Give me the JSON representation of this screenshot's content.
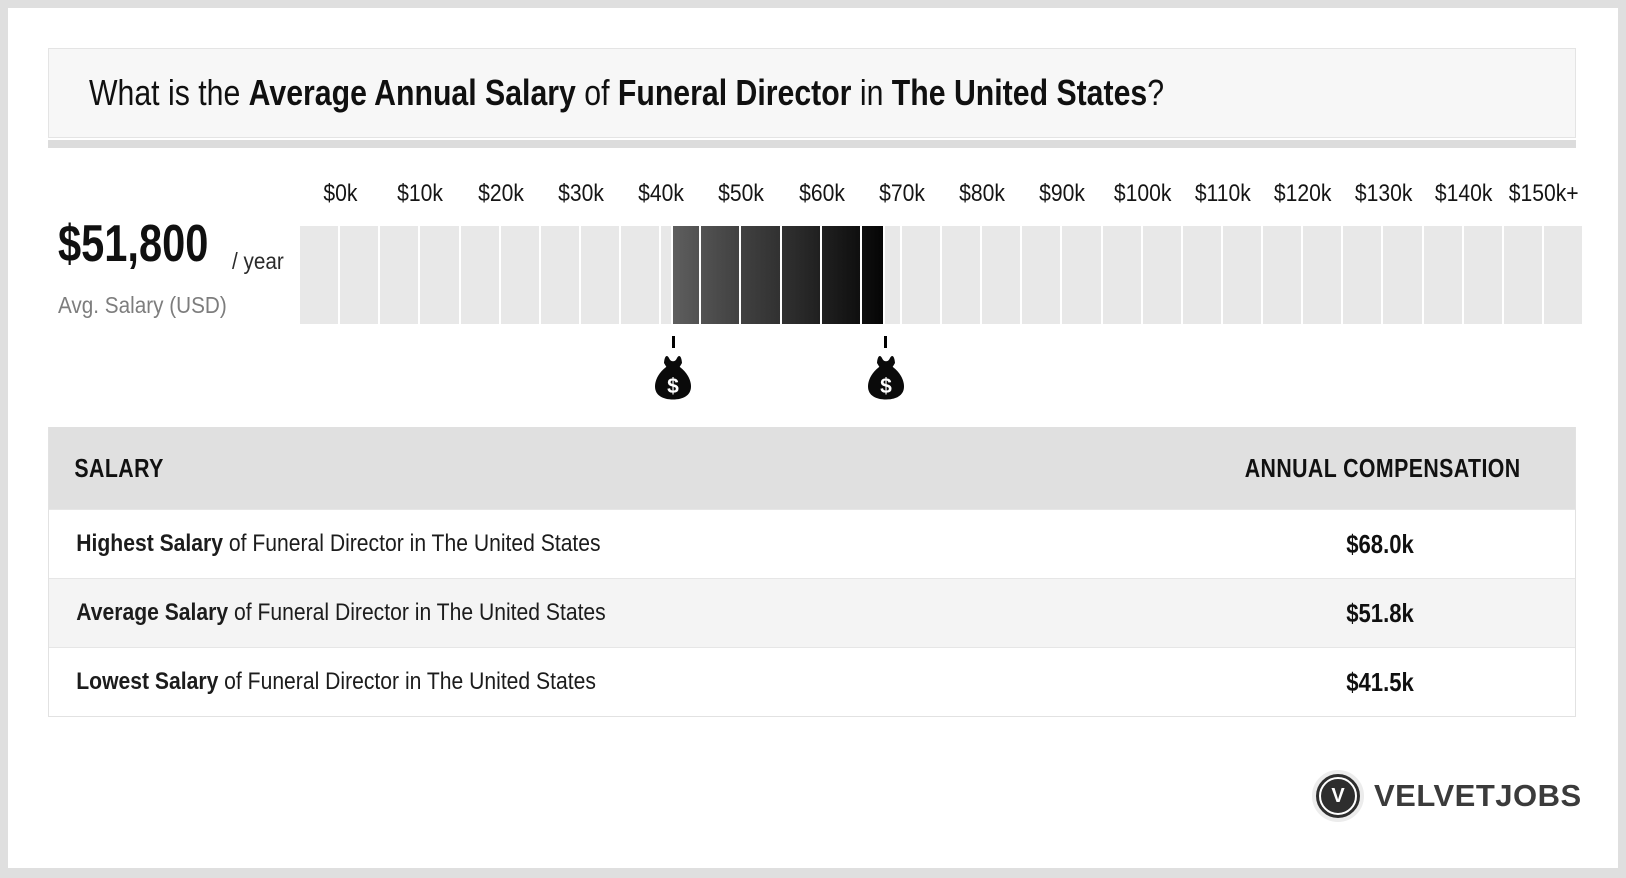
{
  "title": {
    "parts": [
      {
        "text": "What is the ",
        "bold": false
      },
      {
        "text": "Average Annual Salary",
        "bold": true
      },
      {
        "text": " of ",
        "bold": false
      },
      {
        "text": "Funeral Director",
        "bold": true
      },
      {
        "text": " in ",
        "bold": false
      },
      {
        "text": "The United States",
        "bold": true
      },
      {
        "text": "?",
        "bold": false
      }
    ]
  },
  "avg_panel": {
    "amount": "$51,800",
    "per_label": "/ year",
    "caption": "Avg. Salary (USD)"
  },
  "chart_data": {
    "type": "range-scale",
    "unit": "USD thousands, annual salary",
    "axis_min_k": -5,
    "axis_max_k": 155,
    "segment_size_k": 5,
    "ticks": [
      {
        "label": "$0k",
        "value_k": 0
      },
      {
        "label": "$10k",
        "value_k": 10
      },
      {
        "label": "$20k",
        "value_k": 20
      },
      {
        "label": "$30k",
        "value_k": 30
      },
      {
        "label": "$40k",
        "value_k": 40
      },
      {
        "label": "$50k",
        "value_k": 50
      },
      {
        "label": "$60k",
        "value_k": 60
      },
      {
        "label": "$70k",
        "value_k": 70
      },
      {
        "label": "$80k",
        "value_k": 80
      },
      {
        "label": "$90k",
        "value_k": 90
      },
      {
        "label": "$100k",
        "value_k": 100
      },
      {
        "label": "$110k",
        "value_k": 110
      },
      {
        "label": "$120k",
        "value_k": 120
      },
      {
        "label": "$130k",
        "value_k": 130
      },
      {
        "label": "$140k",
        "value_k": 140
      },
      {
        "label": "$150k+",
        "value_k": 150
      }
    ],
    "highlight": {
      "lowest_k": 41.5,
      "average_k": 51.8,
      "highest_k": 68.0
    },
    "markers": [
      {
        "name": "lowest-money-bag",
        "value_k": 41.5,
        "symbol": "$"
      },
      {
        "name": "highest-money-bag",
        "value_k": 68.0,
        "symbol": "$"
      }
    ],
    "colors": {
      "segment_light": "#e8e8e8",
      "range_start": "#5e5e5e",
      "range_end": "#050505"
    }
  },
  "table": {
    "headers": {
      "salary": "SALARY",
      "compensation": "ANNUAL COMPENSATION"
    },
    "rows": [
      {
        "emphasis": "Highest Salary",
        "text": " of Funeral Director in The United States",
        "value": "$68.0k"
      },
      {
        "emphasis": "Average Salary",
        "text": " of Funeral Director in The United States",
        "value": "$51.8k"
      },
      {
        "emphasis": "Lowest Salary",
        "text": " of Funeral Director in The United States",
        "value": "$41.5k"
      }
    ]
  },
  "logo": {
    "initial": "V",
    "name": "VELVETJOBS"
  }
}
